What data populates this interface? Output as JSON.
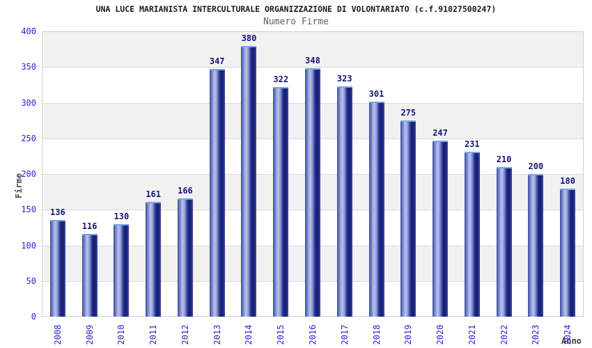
{
  "title": "UNA LUCE MARIANISTA INTERCULTURALE ORGANIZZAZIONE DI VOLONTARIATO (c.f.91027500247)",
  "subtitle": "Numero Firme",
  "chart_data": {
    "type": "bar",
    "title": "Numero Firme",
    "categories": [
      "2008",
      "2009",
      "2010",
      "2011",
      "2012",
      "2013",
      "2014",
      "2015",
      "2016",
      "2017",
      "2018",
      "2019",
      "2020",
      "2021",
      "2022",
      "2023",
      "2024"
    ],
    "values": [
      136,
      116,
      130,
      161,
      166,
      347,
      380,
      322,
      348,
      323,
      301,
      275,
      247,
      231,
      210,
      200,
      180
    ],
    "xlabel": "Anno",
    "ylabel": "Firme",
    "ylim": [
      0,
      400
    ],
    "y_ticks": [
      0,
      50,
      100,
      150,
      200,
      250,
      300,
      350,
      400
    ],
    "grid": true,
    "alternating_bands": true,
    "legend": "none",
    "value_labels_above_bars": true
  },
  "colors": {
    "tick_label": "#2727cf",
    "value_label": "#15157b",
    "bar_dark": "#121b6f",
    "bar_light": "#b9c3ee",
    "bar_top_cap": "#79a9e0",
    "band_gray": "#f1f1f1",
    "grid_line": "#dcdcdc",
    "plot_border": "#cfcfcf",
    "title_color": "#1a1a1a",
    "subtitle_color": "#5f5f5f",
    "axis_title_color": "#3d3d3d"
  }
}
